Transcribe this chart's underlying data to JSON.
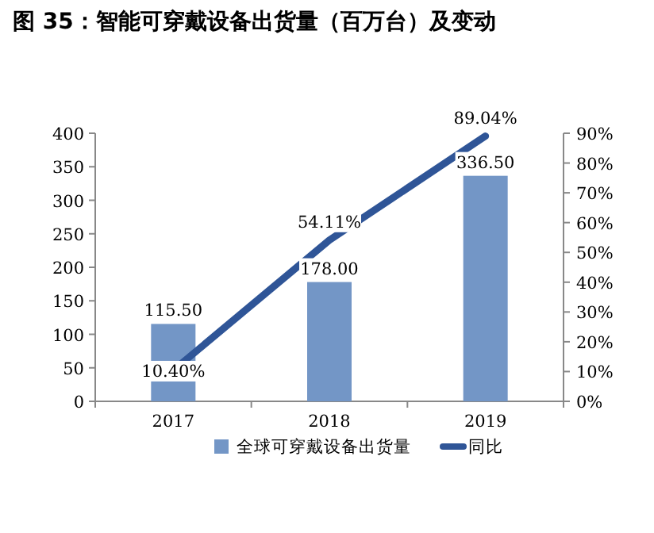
{
  "chart_data": {
    "type": "bar",
    "title": "图 35：智能可穿戴设备出货量（百万台）及变动",
    "categories": [
      "2017",
      "2018",
      "2019"
    ],
    "series": [
      {
        "name": "全球可穿戴设备出货量",
        "color": "#7396c6",
        "values": [
          115.5,
          178,
          336.5
        ],
        "value_labels": [
          "115.50",
          "178.00",
          "336.50"
        ]
      },
      {
        "name": "同比",
        "type": "line",
        "axis": "y2",
        "color": "#2f5597",
        "values": [
          10.4,
          54.11,
          89.04
        ],
        "value_labels": [
          "10.40%",
          "54.11%",
          "89.04%"
        ]
      }
    ],
    "ylim": [
      0,
      400
    ],
    "yticks": [
      0,
      50,
      100,
      150,
      200,
      250,
      300,
      350,
      400
    ],
    "y2lim": [
      0,
      90
    ],
    "y2ticks": [
      {
        "value": 0,
        "label": "0%"
      },
      {
        "value": 10,
        "label": "10%"
      },
      {
        "value": 20,
        "label": "20%"
      },
      {
        "value": 30,
        "label": "30%"
      },
      {
        "value": 40,
        "label": "40%"
      },
      {
        "value": 50,
        "label": "50%"
      },
      {
        "value": 60,
        "label": "60%"
      },
      {
        "value": 70,
        "label": "70%"
      },
      {
        "value": 80,
        "label": "80%"
      },
      {
        "value": 90,
        "label": "90%"
      }
    ],
    "grid": false,
    "legend": "bottom",
    "marker": "none",
    "line_style": "solid"
  }
}
